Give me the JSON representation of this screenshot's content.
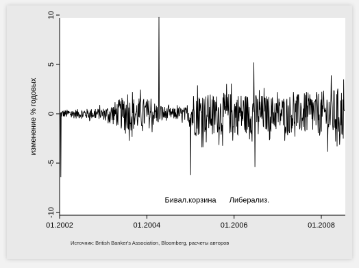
{
  "figure": {
    "source_note": "Источник: British Banker's Association, Bloomberg, расчеты авторов"
  },
  "chart_data": {
    "type": "line",
    "title": "",
    "xlabel": "",
    "ylabel": "изменение % годовых",
    "xlim": [
      2002.0,
      2008.55
    ],
    "ylim": [
      -10,
      10
    ],
    "x_tick_labels": [
      "01.2002",
      "01.2004",
      "01.2006",
      "01.2008"
    ],
    "x_tick_values": [
      2002,
      2004,
      2006,
      2008
    ],
    "y_tick_labels": [
      "-10",
      "-5",
      "0",
      "5",
      "10"
    ],
    "y_tick_values": [
      -10,
      -5,
      0,
      5,
      10
    ],
    "grid": false,
    "annotations": [
      {
        "text": "Бивал.корзина",
        "x": 2005.0,
        "y": -9.0
      },
      {
        "text": "Либерализ.",
        "x": 2006.35,
        "y": -9.0
      }
    ],
    "spikes": [
      {
        "x": 2002.03,
        "y": -6.4
      },
      {
        "x": 2004.28,
        "y": 9.8
      },
      {
        "x": 2005.0,
        "y": -6.2
      },
      {
        "x": 2006.45,
        "y": 5.2
      },
      {
        "x": 2006.48,
        "y": -5.4
      }
    ],
    "amplitude_profile": [
      {
        "x": 2002.0,
        "amp": 0.4
      },
      {
        "x": 2003.0,
        "amp": 0.6
      },
      {
        "x": 2003.5,
        "amp": 1.8
      },
      {
        "x": 2004.0,
        "amp": 1.6
      },
      {
        "x": 2004.5,
        "amp": 0.6
      },
      {
        "x": 2004.95,
        "amp": 0.7
      },
      {
        "x": 2005.0,
        "amp": 2.4
      },
      {
        "x": 2005.5,
        "amp": 2.0
      },
      {
        "x": 2006.0,
        "amp": 2.2
      },
      {
        "x": 2007.0,
        "amp": 1.8
      },
      {
        "x": 2008.0,
        "amp": 2.3
      },
      {
        "x": 2008.55,
        "amp": 2.8
      }
    ]
  }
}
